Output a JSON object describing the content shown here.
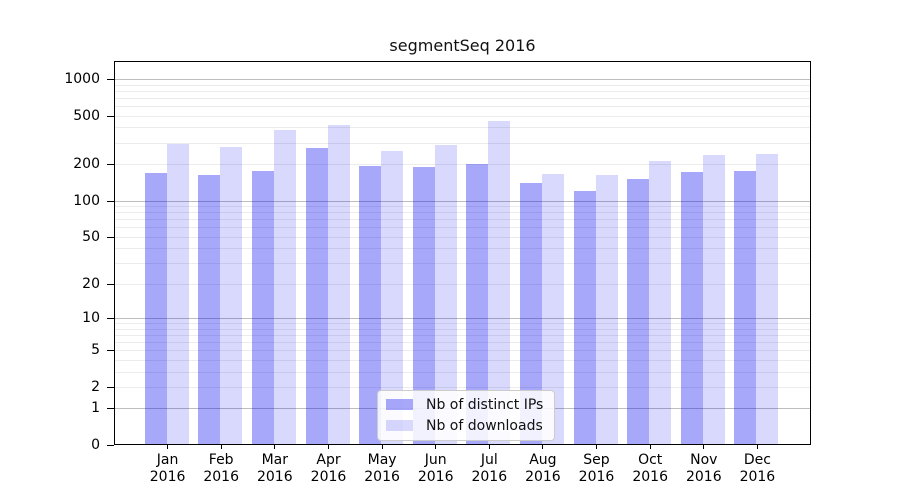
{
  "chart_data": {
    "type": "bar",
    "title": "segmentSeq 2016",
    "categories": [
      "Jan 2016",
      "Feb 2016",
      "Mar 2016",
      "Apr 2016",
      "May 2016",
      "Jun 2016",
      "Jul 2016",
      "Aug 2016",
      "Sep 2016",
      "Oct 2016",
      "Nov 2016",
      "Dec 2016"
    ],
    "series": [
      {
        "name": "Nb of distinct IPs",
        "color": "#0000f0",
        "alpha": 0.34,
        "values": [
          170,
          163,
          176,
          272,
          191,
          189,
          200,
          140,
          119,
          152,
          172,
          175
        ]
      },
      {
        "name": "Nb of downloads",
        "color": "#0000f0",
        "alpha": 0.15,
        "values": [
          294,
          278,
          381,
          419,
          255,
          287,
          454,
          165,
          161,
          212,
          239,
          242
        ]
      }
    ],
    "yscale": "log1p",
    "yticks": [
      0,
      1,
      2,
      5,
      10,
      20,
      50,
      100,
      200,
      500,
      1000
    ],
    "ylim": [
      0,
      1370
    ],
    "xlabel": "",
    "ylabel": "",
    "grid": true,
    "legend_position": "lower center",
    "grid_color_decade": "#bdbdbd",
    "grid_color_minor": "#ececec",
    "axis_color": "#000000",
    "background": "#ffffff"
  }
}
